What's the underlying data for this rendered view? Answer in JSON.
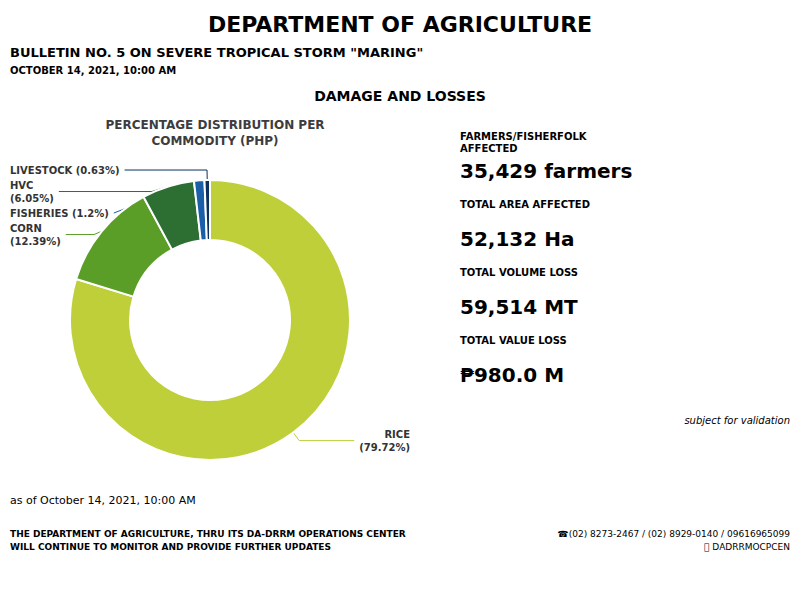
{
  "chart_data": {
    "type": "pie",
    "title": "PERCENTAGE DISTRIBUTION PER\nCOMMODITY (PHP)",
    "categories": [
      "RICE",
      "CORN",
      "HVC",
      "FISHERIES",
      "LIVESTOCK"
    ],
    "values": [
      79.72,
      12.39,
      6.05,
      1.2,
      0.63
    ],
    "value_labels": [
      "RICE\n(79.72%)",
      "CORN\n(12.39%)",
      "HVC\n(6.05%)",
      "FISHERIES (1.2%)",
      "LIVESTOCK (0.63%)"
    ],
    "colors": [
      "#bfcf3a",
      "#5a9e28",
      "#2d6e32",
      "#1a5fa8",
      "#0d3060"
    ],
    "data_labels": true,
    "annotations": [
      "DEPARTMENT OF AGRICULTURE",
      "BULLETIN NO. 5 ON SEVERE TROPICAL STORM \"MARING\"",
      "OCTOBER 14, 2021, 10:00 AM",
      "DAMAGE AND LOSSES",
      "FARMERS/FISHERFOLK\nAFFECTED",
      "35,429 farmers",
      "TOTAL AREA AFFECTED",
      "52,132 Ha",
      "TOTAL VOLUME LOSS",
      "59,514 MT",
      "TOTAL VALUE LOSS",
      "₱980.0 M",
      "subject for validation",
      "as of October 14, 2021, 10:00 AM",
      "THE DEPARTMENT OF AGRICULTURE, THRU ITS DA-DRRM OPERATIONS CENTER\nWILL CONTINUE TO MONITOR AND PROVIDE FURTHER UPDATES",
      "☎(02) 8273-2467 / (02) 8929-0140 / 09616965099\n DADRRMOCPCEN"
    ]
  }
}
